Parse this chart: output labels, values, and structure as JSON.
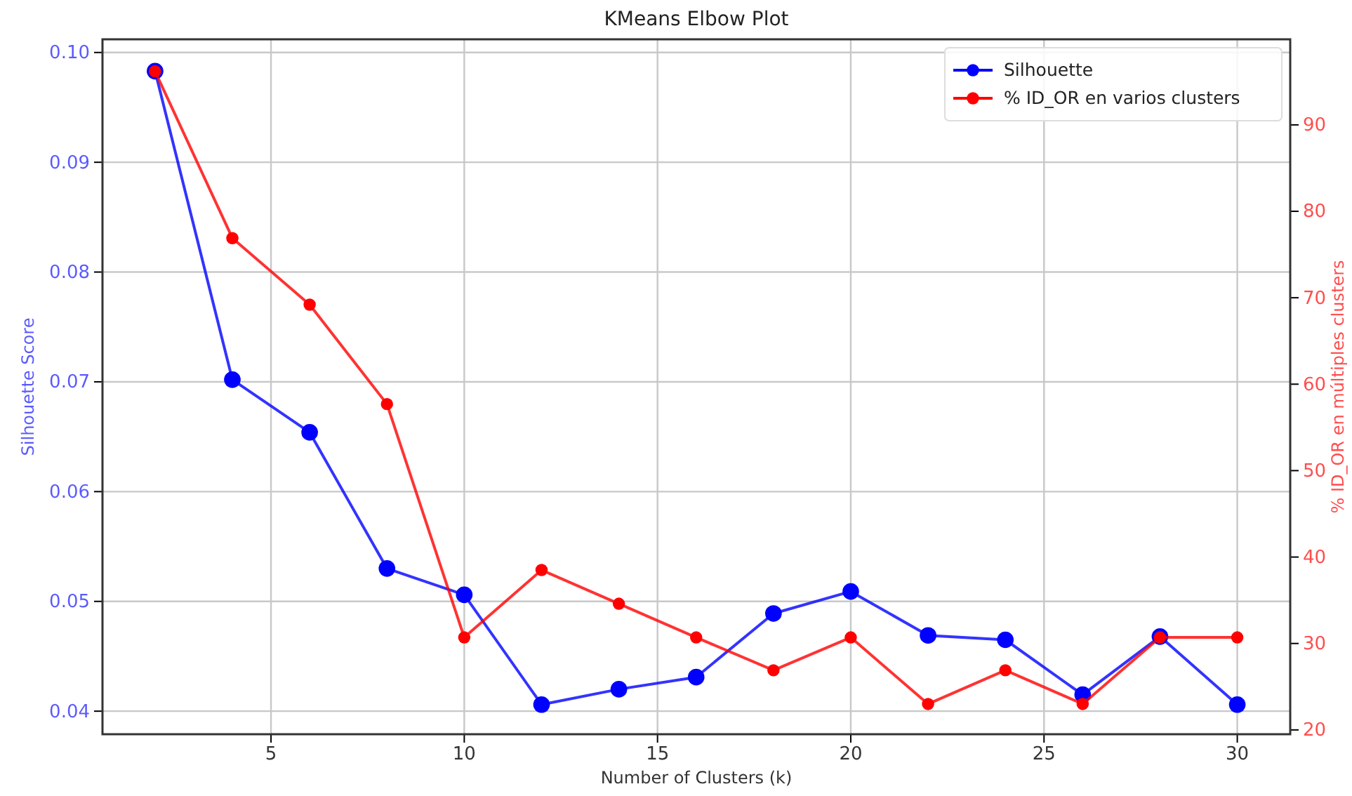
{
  "chart_data": {
    "type": "line",
    "title": "KMeans Elbow Plot",
    "xlabel": "Number of Clusters (k)",
    "ylabel": "Silhouette Score",
    "y2label": "% ID_OR en múltiples clusters",
    "x": [
      2,
      4,
      6,
      8,
      10,
      12,
      14,
      16,
      18,
      20,
      22,
      24,
      26,
      28,
      30
    ],
    "series": [
      {
        "name": "Silhouette",
        "color": "#0000ff",
        "values": [
          0.0983,
          0.0702,
          0.0654,
          0.053,
          0.0506,
          0.0406,
          0.042,
          0.0431,
          0.0489,
          0.0509,
          0.0469,
          0.0465,
          0.0415,
          0.0468,
          0.0406
        ]
      },
      {
        "name": "% ID_OR en varios clusters",
        "color": "#ff0000",
        "axis": "y2",
        "values": [
          96.2,
          76.9,
          69.2,
          57.7,
          30.7,
          38.5,
          34.6,
          30.7,
          26.9,
          30.7,
          23.0,
          26.9,
          23.0,
          30.7,
          30.7
        ]
      }
    ],
    "xlim": [
      0.64,
      31.37
    ],
    "xticks": [
      5,
      10,
      15,
      20,
      25,
      30
    ],
    "ylim": [
      0.0379,
      0.1012
    ],
    "yticks": [
      {
        "value": 0.04,
        "label": "0.04"
      },
      {
        "value": 0.05,
        "label": "0.05"
      },
      {
        "value": 0.06,
        "label": "0.06"
      },
      {
        "value": 0.07,
        "label": "0.07"
      },
      {
        "value": 0.08,
        "label": "0.08"
      },
      {
        "value": 0.09,
        "label": "0.09"
      },
      {
        "value": 0.1,
        "label": "0.10"
      }
    ],
    "y2lim": [
      19.5,
      99.9
    ],
    "y2ticks": [
      20,
      30,
      40,
      50,
      60,
      70,
      80,
      90
    ],
    "grid": true,
    "legend": "top right",
    "marker": "circle",
    "line_style": "solid"
  }
}
